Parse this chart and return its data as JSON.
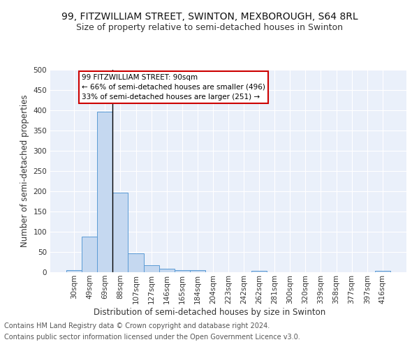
{
  "title1": "99, FITZWILLIAM STREET, SWINTON, MEXBOROUGH, S64 8RL",
  "title2": "Size of property relative to semi-detached houses in Swinton",
  "xlabel": "Distribution of semi-detached houses by size in Swinton",
  "ylabel": "Number of semi-detached properties",
  "categories": [
    "30sqm",
    "49sqm",
    "69sqm",
    "88sqm",
    "107sqm",
    "127sqm",
    "146sqm",
    "165sqm",
    "184sqm",
    "204sqm",
    "223sqm",
    "242sqm",
    "262sqm",
    "281sqm",
    "300sqm",
    "320sqm",
    "339sqm",
    "358sqm",
    "377sqm",
    "397sqm",
    "416sqm"
  ],
  "values": [
    5,
    88,
    396,
    197,
    47,
    18,
    9,
    5,
    6,
    0,
    0,
    0,
    4,
    0,
    0,
    0,
    0,
    0,
    0,
    0,
    4
  ],
  "bar_color": "#c5d8f0",
  "bar_edge_color": "#5b9bd5",
  "annotation_title": "99 FITZWILLIAM STREET: 90sqm",
  "annotation_line1": "← 66% of semi-detached houses are smaller (496)",
  "annotation_line2": "33% of semi-detached houses are larger (251) →",
  "annotation_box_color": "#ffffff",
  "annotation_box_edge": "#cc0000",
  "footer1": "Contains HM Land Registry data © Crown copyright and database right 2024.",
  "footer2": "Contains public sector information licensed under the Open Government Licence v3.0.",
  "ylim": [
    0,
    500
  ],
  "yticks": [
    0,
    50,
    100,
    150,
    200,
    250,
    300,
    350,
    400,
    450,
    500
  ],
  "bg_color": "#eaf0fa",
  "grid_color": "#ffffff",
  "title1_fontsize": 10,
  "title2_fontsize": 9,
  "xlabel_fontsize": 8.5,
  "ylabel_fontsize": 8.5,
  "tick_fontsize": 7.5,
  "footer_fontsize": 7,
  "ann_fontsize": 7.5
}
